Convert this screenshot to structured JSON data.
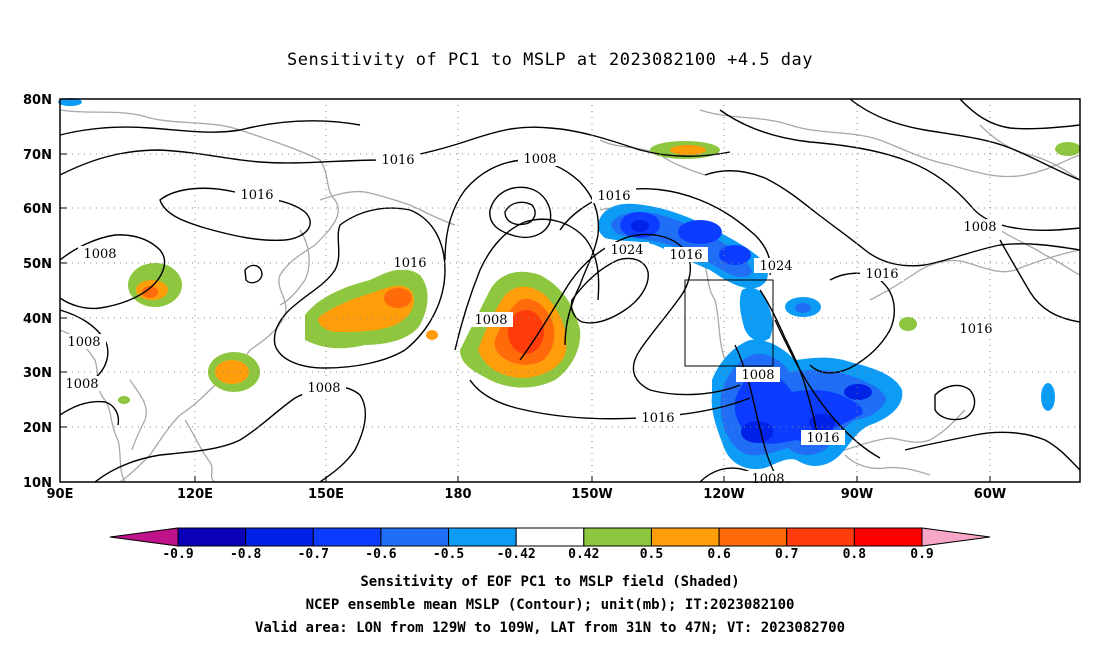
{
  "title": "Sensitivity of PC1 to MSLP at 2023082100 +4.5 day",
  "lat_labels": [
    "80N",
    "70N",
    "60N",
    "50N",
    "40N",
    "30N",
    "20N",
    "10N"
  ],
  "lon_labels": [
    "90E",
    "120E",
    "150E",
    "180",
    "150W",
    "120W",
    "90W",
    "60W"
  ],
  "contour_labels": [
    {
      "text": "1016"
    },
    {
      "text": "1016"
    },
    {
      "text": "1008"
    },
    {
      "text": "1008"
    },
    {
      "text": "1016"
    },
    {
      "text": "1016"
    },
    {
      "text": "1024"
    },
    {
      "text": "1016"
    },
    {
      "text": "1024"
    },
    {
      "text": "1016"
    },
    {
      "text": "1008"
    },
    {
      "text": "1016"
    },
    {
      "text": "1008"
    },
    {
      "text": "1008"
    },
    {
      "text": "1008"
    },
    {
      "text": "1008"
    },
    {
      "text": "1016"
    },
    {
      "text": "1008"
    },
    {
      "text": "1016"
    },
    {
      "text": "1008"
    }
  ],
  "colorbar": {
    "labels": [
      "-0.9",
      "-0.8",
      "-0.7",
      "-0.6",
      "-0.5",
      "-0.42",
      "0.42",
      "0.5",
      "0.6",
      "0.7",
      "0.8",
      "0.9"
    ],
    "colors": [
      "#0a00b8",
      "#0022e6",
      "#0b3cff",
      "#1f6ef5",
      "#0c9cf5",
      "#ffffff",
      "#8ec63f",
      "#ff9d0a",
      "#ff6a0a",
      "#ff3b0a",
      "#ff0000"
    ],
    "low_arrow_color": "#c0128a",
    "high_arrow_color": "#f7a6c8"
  },
  "captions": [
    "Sensitivity of EOF PC1 to MSLP field (Shaded)",
    "NCEP ensemble mean MSLP (Contour); unit(mb); IT:2023082100",
    "Valid area: LON from 129W to 109W, LAT from 31N to 47N; VT: 2023082700"
  ]
}
